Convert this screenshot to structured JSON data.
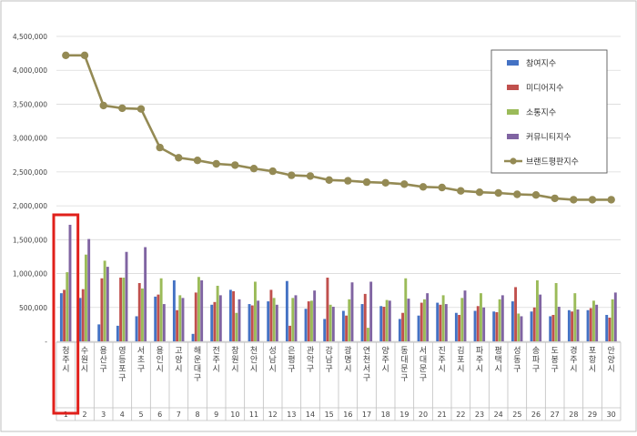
{
  "chart_data": {
    "type": "bar",
    "categories": [
      "청주시",
      "수원시",
      "용산구",
      "영등포구",
      "서초구",
      "용인시",
      "고양시",
      "해운대구",
      "전주시",
      "창원시",
      "천안시",
      "성남시",
      "은평구",
      "관악구",
      "강남구",
      "광명시",
      "연천서구",
      "양주시",
      "동대문구",
      "서대문구",
      "진주시",
      "김포시",
      "파주시",
      "평택시",
      "성동구",
      "송파구",
      "도봉구",
      "경주시",
      "포항시",
      "안양시"
    ],
    "ranks": [
      "1",
      "2",
      "3",
      "4",
      "5",
      "6",
      "7",
      "8",
      "9",
      "10",
      "11",
      "12",
      "13",
      "14",
      "15",
      "16",
      "17",
      "18",
      "19",
      "20",
      "21",
      "22",
      "23",
      "24",
      "25",
      "26",
      "27",
      "28",
      "29",
      "30"
    ],
    "ylim": [
      0,
      4500000
    ],
    "yticks": [
      "-",
      "500,000",
      "1,000,000",
      "1,500,000",
      "2,000,000",
      "2,500,000",
      "3,000,000",
      "3,500,000",
      "4,000,000",
      "4,500,000"
    ],
    "series": [
      {
        "name": "참여지수",
        "color": "#4472c4",
        "values": [
          710000,
          640000,
          250000,
          230000,
          370000,
          660000,
          900000,
          110000,
          540000,
          760000,
          550000,
          590000,
          890000,
          480000,
          330000,
          450000,
          550000,
          520000,
          330000,
          380000,
          570000,
          420000,
          450000,
          440000,
          590000,
          440000,
          370000,
          460000,
          460000,
          390000
        ]
      },
      {
        "name": "미디어지수",
        "color": "#c0504d",
        "values": [
          760000,
          770000,
          930000,
          940000,
          860000,
          690000,
          460000,
          720000,
          580000,
          740000,
          530000,
          760000,
          230000,
          590000,
          940000,
          380000,
          700000,
          510000,
          420000,
          570000,
          540000,
          390000,
          520000,
          430000,
          800000,
          500000,
          390000,
          440000,
          490000,
          350000
        ]
      },
      {
        "name": "소통지수",
        "color": "#9bbb59",
        "values": [
          1020000,
          1280000,
          1190000,
          940000,
          780000,
          930000,
          680000,
          950000,
          820000,
          420000,
          880000,
          640000,
          640000,
          600000,
          540000,
          620000,
          200000,
          610000,
          930000,
          620000,
          680000,
          640000,
          710000,
          620000,
          410000,
          900000,
          860000,
          710000,
          600000,
          620000
        ]
      },
      {
        "name": "커뮤니티지수",
        "color": "#8064a2",
        "values": [
          1720000,
          1510000,
          1100000,
          1320000,
          1390000,
          550000,
          640000,
          900000,
          680000,
          620000,
          600000,
          540000,
          680000,
          750000,
          510000,
          870000,
          880000,
          600000,
          630000,
          710000,
          550000,
          750000,
          500000,
          680000,
          370000,
          690000,
          510000,
          470000,
          540000,
          720000
        ]
      },
      {
        "name": "브랜드평판지수",
        "color": "#948a54",
        "type": "line",
        "values": [
          4220000,
          4220000,
          3480000,
          3440000,
          3430000,
          2860000,
          2710000,
          2670000,
          2620000,
          2600000,
          2550000,
          2510000,
          2450000,
          2440000,
          2380000,
          2370000,
          2350000,
          2340000,
          2320000,
          2280000,
          2270000,
          2220000,
          2200000,
          2190000,
          2170000,
          2160000,
          2110000,
          2090000,
          2090000,
          2090000
        ]
      }
    ],
    "legend_position": "top-right",
    "highlight_category": "청주시",
    "grid": true
  }
}
